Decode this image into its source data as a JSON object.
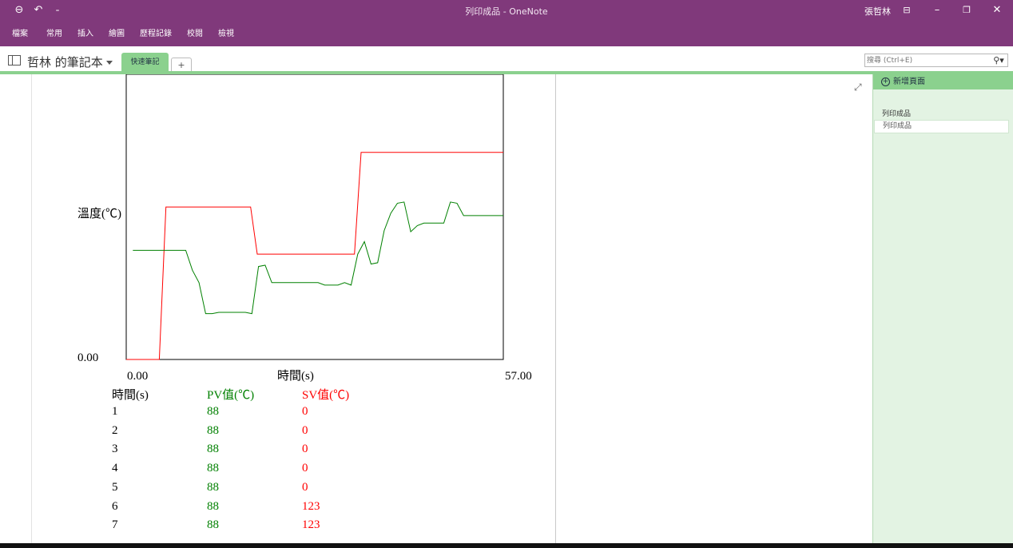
{
  "window": {
    "title": "列印成品 - OneNote",
    "user": "張哲林"
  },
  "menus": [
    "檔案",
    "常用",
    "插入",
    "繪圖",
    "歷程記錄",
    "校閱",
    "檢視"
  ],
  "notebook": {
    "name": "哲林 的筆記本",
    "active_tab": "快速筆記",
    "add_tab": "+"
  },
  "search": {
    "placeholder": "搜尋 (Ctrl+E)"
  },
  "sidebar": {
    "add_page": "新增頁面",
    "section_title": "列印成品",
    "pages": [
      "列印成品"
    ]
  },
  "colors": {
    "accent_purple": "#80397b",
    "accent_green": "#8bd18e",
    "pv_series": "#008000",
    "sv_series": "#ff0000"
  },
  "chart_data": {
    "type": "line",
    "ylabel": "溫度(℃)",
    "xlabel": "時間(s)",
    "x_tick_min": "0.00",
    "x_tick_max": "57.00",
    "y_tick_min": "0.00",
    "xlim": [
      0,
      57
    ],
    "ylim": [
      0,
      230
    ],
    "series": [
      {
        "name": "PV值(℃)",
        "x": [
          1,
          2,
          3,
          4,
          5,
          6,
          7,
          8,
          9,
          10,
          11,
          12,
          13,
          14,
          15,
          16,
          17,
          18,
          19,
          20,
          21,
          22,
          23,
          24,
          25,
          26,
          27,
          28,
          29,
          30,
          31,
          32,
          33,
          34,
          35,
          36,
          37,
          38,
          39,
          40,
          41,
          42,
          43,
          44,
          45,
          46,
          47,
          48,
          49,
          50,
          51,
          52,
          53,
          54,
          55,
          56,
          57
        ],
        "values": [
          88,
          88,
          88,
          88,
          88,
          88,
          88,
          88,
          88,
          72,
          62,
          37,
          37,
          38,
          38,
          38,
          38,
          38,
          37,
          75,
          76,
          62,
          62,
          62,
          62,
          62,
          62,
          62,
          62,
          60,
          60,
          60,
          62,
          60,
          85,
          95,
          77,
          78,
          104,
          118,
          126,
          127,
          103,
          108,
          110,
          110,
          110,
          110,
          127,
          126,
          116,
          116,
          116,
          116,
          116,
          116,
          116
        ]
      },
      {
        "name": "SV值(℃)",
        "x": [
          0,
          5,
          6,
          18.8,
          19.8,
          34.5,
          35.5,
          57
        ],
        "values": [
          0,
          0,
          123,
          123,
          85,
          85,
          167,
          167
        ]
      }
    ]
  },
  "table": {
    "headers": [
      "時間(s)",
      "PV值(℃)",
      "SV值(℃)"
    ],
    "rows": [
      [
        "1",
        "88",
        "0"
      ],
      [
        "2",
        "88",
        "0"
      ],
      [
        "3",
        "88",
        "0"
      ],
      [
        "4",
        "88",
        "0"
      ],
      [
        "5",
        "88",
        "0"
      ],
      [
        "6",
        "88",
        "123"
      ],
      [
        "7",
        "88",
        "123"
      ]
    ]
  }
}
